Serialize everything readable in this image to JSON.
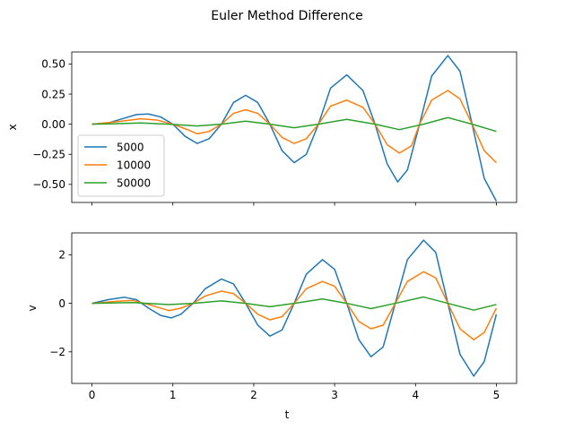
{
  "figure": {
    "suptitle": "Euler Method Difference"
  },
  "chart_data": [
    {
      "type": "line",
      "xlabel": "",
      "ylabel": "x",
      "xlim": [
        -0.25,
        5.25
      ],
      "ylim": [
        -0.65,
        0.6
      ],
      "xticks": [
        0,
        1,
        2,
        3,
        4,
        5
      ],
      "xtick_labels_visible": false,
      "yticks": [
        -0.5,
        -0.25,
        0.0,
        0.25,
        0.5
      ],
      "ytick_labels": [
        "−0.50",
        "−0.25",
        "0.00",
        "0.25",
        "0.50"
      ],
      "legend": {
        "position": "lower-left",
        "entries": [
          "5000",
          "10000",
          "50000"
        ]
      },
      "series": [
        {
          "name": "5000",
          "color": "#1f77b4",
          "points": [
            [
              0,
              0
            ],
            [
              0.2,
              0.01
            ],
            [
              0.4,
              0.05
            ],
            [
              0.55,
              0.08
            ],
            [
              0.7,
              0.085
            ],
            [
              0.85,
              0.06
            ],
            [
              1.0,
              0
            ],
            [
              1.15,
              -0.1
            ],
            [
              1.3,
              -0.16
            ],
            [
              1.45,
              -0.12
            ],
            [
              1.6,
              0
            ],
            [
              1.75,
              0.18
            ],
            [
              1.9,
              0.24
            ],
            [
              2.05,
              0.18
            ],
            [
              2.2,
              0
            ],
            [
              2.35,
              -0.22
            ],
            [
              2.5,
              -0.32
            ],
            [
              2.65,
              -0.25
            ],
            [
              2.8,
              0
            ],
            [
              2.95,
              0.3
            ],
            [
              3.15,
              0.41
            ],
            [
              3.35,
              0.28
            ],
            [
              3.5,
              0
            ],
            [
              3.65,
              -0.33
            ],
            [
              3.78,
              -0.48
            ],
            [
              3.9,
              -0.38
            ],
            [
              4.05,
              0
            ],
            [
              4.2,
              0.4
            ],
            [
              4.4,
              0.57
            ],
            [
              4.55,
              0.44
            ],
            [
              4.7,
              0
            ],
            [
              4.85,
              -0.45
            ],
            [
              5.0,
              -0.64
            ]
          ]
        },
        {
          "name": "10000",
          "color": "#ff7f0e",
          "points": [
            [
              0,
              0
            ],
            [
              0.3,
              0.02
            ],
            [
              0.6,
              0.045
            ],
            [
              0.8,
              0.035
            ],
            [
              1.0,
              0
            ],
            [
              1.2,
              -0.05
            ],
            [
              1.3,
              -0.08
            ],
            [
              1.45,
              -0.06
            ],
            [
              1.6,
              0
            ],
            [
              1.75,
              0.09
            ],
            [
              1.9,
              0.12
            ],
            [
              2.05,
              0.09
            ],
            [
              2.2,
              0
            ],
            [
              2.35,
              -0.11
            ],
            [
              2.5,
              -0.16
            ],
            [
              2.65,
              -0.12
            ],
            [
              2.8,
              0
            ],
            [
              2.95,
              0.15
            ],
            [
              3.15,
              0.2
            ],
            [
              3.35,
              0.14
            ],
            [
              3.5,
              0
            ],
            [
              3.65,
              -0.17
            ],
            [
              3.8,
              -0.24
            ],
            [
              3.95,
              -0.18
            ],
            [
              4.05,
              0
            ],
            [
              4.2,
              0.2
            ],
            [
              4.4,
              0.28
            ],
            [
              4.55,
              0.21
            ],
            [
              4.7,
              0
            ],
            [
              4.85,
              -0.22
            ],
            [
              5.0,
              -0.32
            ]
          ]
        },
        {
          "name": "50000",
          "color": "#2ca02c",
          "points": [
            [
              0,
              0
            ],
            [
              0.35,
              0.005
            ],
            [
              0.6,
              0.01
            ],
            [
              0.95,
              0.0
            ],
            [
              1.3,
              -0.015
            ],
            [
              1.6,
              0.0
            ],
            [
              1.9,
              0.025
            ],
            [
              2.2,
              0.0
            ],
            [
              2.5,
              -0.03
            ],
            [
              2.8,
              0.0
            ],
            [
              3.15,
              0.04
            ],
            [
              3.5,
              0.0
            ],
            [
              3.8,
              -0.045
            ],
            [
              4.1,
              0.0
            ],
            [
              4.4,
              0.055
            ],
            [
              4.7,
              0.0
            ],
            [
              5.0,
              -0.06
            ]
          ]
        }
      ]
    },
    {
      "type": "line",
      "xlabel": "t",
      "ylabel": "v",
      "xlim": [
        -0.25,
        5.25
      ],
      "ylim": [
        -3.3,
        2.9
      ],
      "xticks": [
        0,
        1,
        2,
        3,
        4,
        5
      ],
      "xtick_labels": [
        "0",
        "1",
        "2",
        "3",
        "4",
        "5"
      ],
      "yticks": [
        -2,
        0,
        2
      ],
      "ytick_labels": [
        "−2",
        "0",
        "2"
      ],
      "series": [
        {
          "name": "5000",
          "color": "#1f77b4",
          "points": [
            [
              0,
              0
            ],
            [
              0.2,
              0.15
            ],
            [
              0.4,
              0.25
            ],
            [
              0.55,
              0.15
            ],
            [
              0.7,
              -0.2
            ],
            [
              0.85,
              -0.5
            ],
            [
              0.98,
              -0.6
            ],
            [
              1.1,
              -0.45
            ],
            [
              1.25,
              0
            ],
            [
              1.4,
              0.6
            ],
            [
              1.6,
              1.0
            ],
            [
              1.75,
              0.8
            ],
            [
              1.9,
              0
            ],
            [
              2.05,
              -0.9
            ],
            [
              2.2,
              -1.35
            ],
            [
              2.35,
              -1.1
            ],
            [
              2.5,
              0
            ],
            [
              2.65,
              1.2
            ],
            [
              2.85,
              1.8
            ],
            [
              3.0,
              1.4
            ],
            [
              3.15,
              0
            ],
            [
              3.3,
              -1.5
            ],
            [
              3.45,
              -2.2
            ],
            [
              3.6,
              -1.8
            ],
            [
              3.75,
              0
            ],
            [
              3.9,
              1.8
            ],
            [
              4.1,
              2.6
            ],
            [
              4.25,
              2.1
            ],
            [
              4.4,
              0
            ],
            [
              4.55,
              -2.1
            ],
            [
              4.72,
              -3.0
            ],
            [
              4.85,
              -2.4
            ],
            [
              5.0,
              -0.45
            ]
          ]
        },
        {
          "name": "10000",
          "color": "#ff7f0e",
          "points": [
            [
              0,
              0
            ],
            [
              0.3,
              0.08
            ],
            [
              0.5,
              0.12
            ],
            [
              0.7,
              -0.05
            ],
            [
              0.95,
              -0.3
            ],
            [
              1.1,
              -0.2
            ],
            [
              1.25,
              0
            ],
            [
              1.4,
              0.3
            ],
            [
              1.6,
              0.5
            ],
            [
              1.75,
              0.4
            ],
            [
              1.9,
              0
            ],
            [
              2.05,
              -0.45
            ],
            [
              2.2,
              -0.68
            ],
            [
              2.35,
              -0.55
            ],
            [
              2.5,
              0
            ],
            [
              2.65,
              0.6
            ],
            [
              2.85,
              0.9
            ],
            [
              3.0,
              0.7
            ],
            [
              3.15,
              0
            ],
            [
              3.3,
              -0.75
            ],
            [
              3.45,
              -1.05
            ],
            [
              3.6,
              -0.9
            ],
            [
              3.75,
              0
            ],
            [
              3.9,
              0.9
            ],
            [
              4.1,
              1.3
            ],
            [
              4.25,
              1.05
            ],
            [
              4.4,
              0
            ],
            [
              4.55,
              -1.05
            ],
            [
              4.72,
              -1.5
            ],
            [
              4.85,
              -1.2
            ],
            [
              5.0,
              -0.2
            ]
          ]
        },
        {
          "name": "50000",
          "color": "#2ca02c",
          "points": [
            [
              0,
              0
            ],
            [
              0.5,
              0.03
            ],
            [
              0.95,
              -0.05
            ],
            [
              1.25,
              0
            ],
            [
              1.6,
              0.1
            ],
            [
              1.9,
              0
            ],
            [
              2.2,
              -0.14
            ],
            [
              2.5,
              0
            ],
            [
              2.85,
              0.18
            ],
            [
              3.15,
              0
            ],
            [
              3.45,
              -0.22
            ],
            [
              3.75,
              0
            ],
            [
              4.1,
              0.26
            ],
            [
              4.4,
              0
            ],
            [
              4.72,
              -0.28
            ],
            [
              5.0,
              -0.05
            ]
          ]
        }
      ]
    }
  ]
}
